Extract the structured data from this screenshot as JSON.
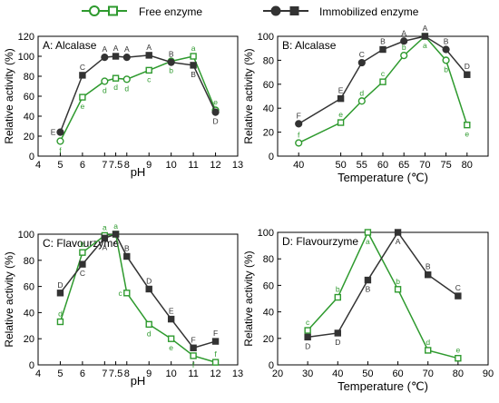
{
  "colors": {
    "free": "#2e9a2e",
    "immobilized": "#333333",
    "axis": "#000000"
  },
  "legend": {
    "free_label": "Free enzyme",
    "immobilized_label": "Immobilized enzyme"
  },
  "chart_data": [
    {
      "id": "A",
      "type": "line",
      "title": "A: Alcalase",
      "xlabel": "pH",
      "ylabel": "Relative activity (%)",
      "xlim": [
        4,
        13
      ],
      "ylim": [
        0,
        120
      ],
      "xticks": [
        4,
        5,
        6,
        7,
        7.5,
        8,
        9,
        10,
        11,
        12,
        13
      ],
      "xtick_labels": [
        "4",
        "5",
        "6",
        "7",
        "7.5",
        "8",
        "9",
        "10",
        "11",
        "12",
        "13"
      ],
      "yticks": [
        0,
        20,
        40,
        60,
        80,
        100,
        120
      ],
      "series": [
        {
          "name": "Free enzyme",
          "key": "free",
          "x": [
            5,
            6,
            7,
            7.5,
            8,
            9,
            10,
            11,
            12
          ],
          "y": [
            15,
            59,
            75,
            78,
            77,
            86,
            95,
            100,
            46
          ],
          "labels": [
            "f",
            "e",
            "d",
            "d",
            "d",
            "c",
            "b",
            "a",
            "e"
          ],
          "label_pos": [
            "below",
            "below",
            "below",
            "below",
            "below",
            "below",
            "below",
            "above",
            "above"
          ]
        },
        {
          "name": "Immobilized enzyme",
          "key": "immobilized",
          "x": [
            5,
            6,
            7,
            7.5,
            8,
            9,
            10,
            11,
            12
          ],
          "y": [
            24,
            81,
            99,
            100,
            99,
            101,
            94,
            91,
            44
          ],
          "labels": [
            "E",
            "C",
            "A",
            "A",
            "A",
            "A",
            "B",
            "B",
            "D"
          ],
          "label_pos": [
            "left",
            "above",
            "above",
            "above",
            "above",
            "above",
            "above",
            "below",
            "below"
          ]
        }
      ]
    },
    {
      "id": "B",
      "type": "line",
      "title": "B: Alcalase",
      "xlabel": "Temperature (℃)",
      "ylabel": "Relative activity (%)",
      "xlim": [
        35,
        85
      ],
      "ylim": [
        0,
        100
      ],
      "xticks": [
        40,
        50,
        55,
        60,
        65,
        70,
        75,
        80
      ],
      "xtick_labels": [
        "40",
        "50",
        "55",
        "60",
        "65",
        "70",
        "75",
        "80"
      ],
      "yticks": [
        0,
        20,
        40,
        60,
        80,
        100
      ],
      "series": [
        {
          "name": "Free enzyme",
          "key": "free",
          "x": [
            40,
            50,
            55,
            60,
            65,
            70,
            75,
            80
          ],
          "y": [
            11,
            28,
            46,
            62,
            84,
            100,
            80,
            26
          ],
          "labels": [
            "f",
            "e",
            "d",
            "c",
            "b",
            "a",
            "b",
            "e"
          ],
          "label_pos": [
            "above",
            "above",
            "above",
            "above",
            "above",
            "below",
            "below",
            "below"
          ]
        },
        {
          "name": "Immobilized enzyme",
          "key": "immobilized",
          "x": [
            40,
            50,
            55,
            60,
            65,
            70,
            75,
            80
          ],
          "y": [
            27,
            48,
            78,
            89,
            96,
            100,
            89,
            68
          ],
          "labels": [
            "F",
            "E",
            "C",
            "B",
            "A",
            "A",
            "B",
            "D"
          ],
          "label_pos": [
            "above",
            "above",
            "above",
            "above",
            "above",
            "above",
            "above",
            "above"
          ]
        }
      ]
    },
    {
      "id": "C",
      "type": "line",
      "title": "C: Flavourzyme",
      "xlabel": "pH",
      "ylabel": "Relative activity (%)",
      "xlim": [
        4,
        13
      ],
      "ylim": [
        0,
        100
      ],
      "xticks": [
        4,
        5,
        6,
        7,
        7.5,
        8,
        9,
        10,
        11,
        12,
        13
      ],
      "xtick_labels": [
        "4",
        "5",
        "6",
        "7",
        "7.5",
        "8",
        "9",
        "10",
        "11",
        "12",
        "13"
      ],
      "yticks": [
        0,
        20,
        40,
        60,
        80,
        100
      ],
      "series": [
        {
          "name": "Free enzyme",
          "key": "free",
          "x": [
            5,
            6,
            7,
            7.5,
            8,
            9,
            10,
            11,
            12
          ],
          "y": [
            33,
            86,
            99,
            100,
            55,
            31,
            20,
            7,
            2
          ],
          "labels": [
            "d",
            "b",
            "a",
            "a",
            "c",
            "d",
            "e",
            "f",
            "f"
          ],
          "label_pos": [
            "above",
            "above",
            "above",
            "above",
            "left",
            "below",
            "below",
            "below",
            "above"
          ]
        },
        {
          "name": "Immobilized enzyme",
          "key": "immobilized",
          "x": [
            5,
            6,
            7,
            7.5,
            8,
            9,
            10,
            11,
            12
          ],
          "y": [
            55,
            77,
            97,
            100,
            83,
            58,
            35,
            13,
            18
          ],
          "labels": [
            "D",
            "C",
            "A",
            "A",
            "B",
            "D",
            "E",
            "F",
            "F"
          ],
          "label_pos": [
            "above",
            "below",
            "below",
            "below",
            "above",
            "above",
            "above",
            "above",
            "above"
          ]
        }
      ]
    },
    {
      "id": "D",
      "type": "line",
      "title": "D: Flavourzyme",
      "xlabel": "Temperature (℃)",
      "ylabel": "Relative activity (%)",
      "xlim": [
        20,
        90
      ],
      "ylim": [
        0,
        100
      ],
      "xticks": [
        20,
        30,
        40,
        50,
        60,
        70,
        80,
        90
      ],
      "xtick_labels": [
        "20",
        "30",
        "40",
        "50",
        "60",
        "70",
        "80",
        "90"
      ],
      "yticks": [
        0,
        20,
        40,
        60,
        80,
        100
      ],
      "series": [
        {
          "name": "Free enzyme",
          "key": "free",
          "x": [
            30,
            40,
            50,
            60,
            70,
            80
          ],
          "y": [
            26,
            51,
            100,
            57,
            11,
            5
          ],
          "labels": [
            "c",
            "b",
            "a",
            "b",
            "d",
            "e"
          ],
          "label_pos": [
            "above",
            "above",
            "below",
            "above",
            "above",
            "above"
          ]
        },
        {
          "name": "Immobilized enzyme",
          "key": "immobilized",
          "x": [
            30,
            40,
            50,
            60,
            70,
            80
          ],
          "y": [
            21,
            24,
            64,
            100,
            68,
            52
          ],
          "labels": [
            "D",
            "D",
            "B",
            "A",
            "B",
            "C"
          ],
          "label_pos": [
            "below",
            "below",
            "below",
            "below",
            "above",
            "above"
          ]
        }
      ]
    }
  ]
}
